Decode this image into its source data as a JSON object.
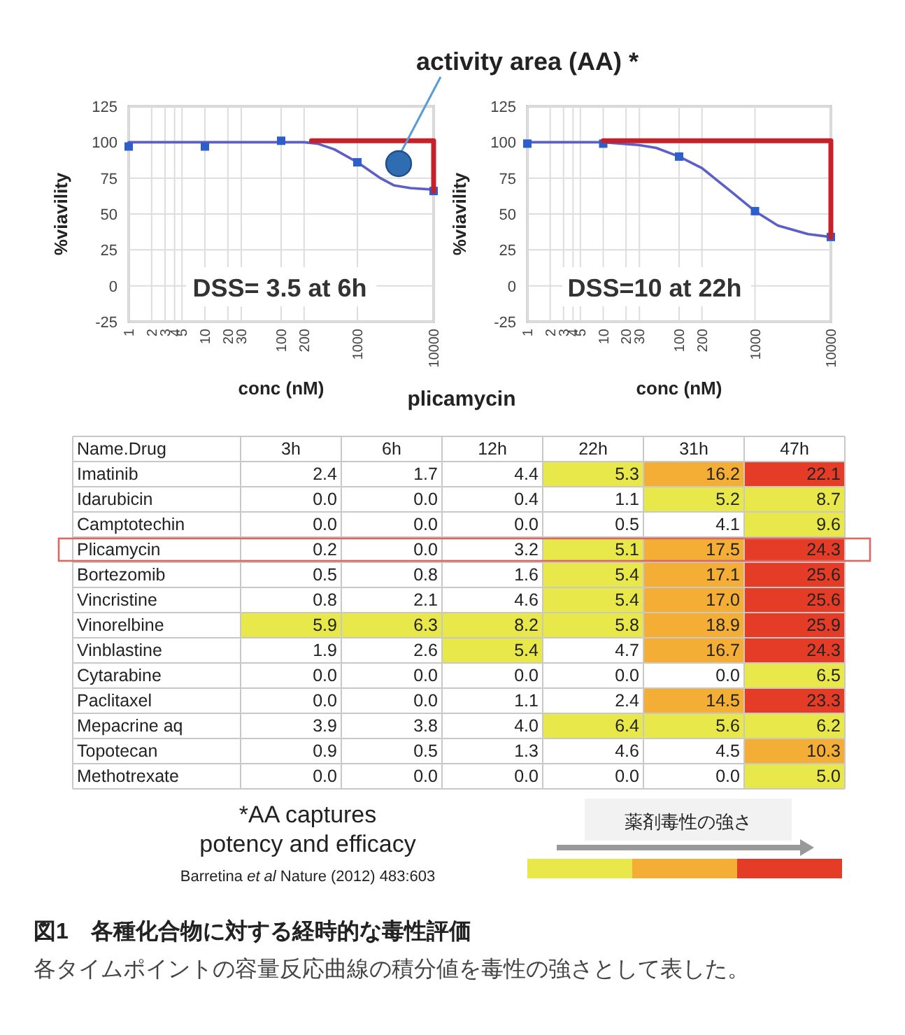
{
  "chart_data": [
    {
      "type": "line",
      "xlabel": "conc (nM)",
      "ylabel": "%viavility",
      "log": "x",
      "xlim": [
        1,
        10000
      ],
      "xticks": [
        1,
        2,
        3,
        4,
        5,
        10,
        20,
        30,
        100,
        200,
        1000,
        10000
      ],
      "ylim": [
        -25,
        125
      ],
      "yticks": [
        -25,
        0,
        25,
        50,
        75,
        100,
        125
      ],
      "grid": true,
      "annotations": [
        "activity area (AA) *",
        "DSS= 3.5 at 6h",
        "plicamycin"
      ],
      "series": [
        {
          "type": "line",
          "color": "#5b5fc7",
          "marker": "none",
          "x": [
            1,
            10,
            100,
            200,
            300,
            500,
            1000,
            2000,
            3000,
            5000,
            10000
          ],
          "values": [
            100,
            100,
            100,
            100,
            99,
            95,
            86,
            75,
            70,
            68,
            67
          ]
        },
        {
          "type": "scatter",
          "color": "#2e5ec9",
          "marker": "square",
          "x": [
            1,
            10,
            100,
            1000,
            10000
          ],
          "values": [
            97,
            97,
            101,
            86,
            66
          ]
        },
        {
          "type": "line",
          "color": "#c8202a",
          "marker": "none",
          "x": [
            250,
            10000,
            10000
          ],
          "values": [
            101,
            101,
            66
          ]
        }
      ]
    },
    {
      "type": "line",
      "xlabel": "conc (nM)",
      "ylabel": "%viavility",
      "log": "x",
      "xlim": [
        1,
        10000
      ],
      "xticks": [
        1,
        2,
        3,
        4,
        5,
        10,
        20,
        30,
        100,
        200,
        1000,
        10000
      ],
      "ylim": [
        -25,
        125
      ],
      "yticks": [
        -25,
        0,
        25,
        50,
        75,
        100,
        125
      ],
      "grid": true,
      "annotations": [
        "DSS=10 at 22h"
      ],
      "series": [
        {
          "type": "line",
          "color": "#5b5fc7",
          "marker": "none",
          "x": [
            1,
            10,
            30,
            50,
            100,
            200,
            500,
            1000,
            2000,
            5000,
            10000
          ],
          "values": [
            100,
            100,
            98,
            96,
            90,
            82,
            65,
            52,
            42,
            36,
            34
          ]
        },
        {
          "type": "scatter",
          "color": "#2e5ec9",
          "marker": "square",
          "x": [
            1,
            10,
            100,
            1000,
            10000
          ],
          "values": [
            99,
            99,
            90,
            52,
            34
          ]
        },
        {
          "type": "line",
          "color": "#c8202a",
          "marker": "none",
          "x": [
            10,
            10000,
            10000
          ],
          "values": [
            101,
            101,
            34
          ]
        }
      ]
    },
    {
      "type": "heatmap",
      "ylabel": "Name.Drug",
      "clabel": "薬剤毒性の強さ",
      "categories": [
        "3h",
        "6h",
        "12h",
        "22h",
        "31h",
        "47h"
      ],
      "y_categories": [
        "Imatinib",
        "Idarubicin",
        "Camptotechin",
        "Plicamycin",
        "Bortezomib",
        "Vincristine",
        "Vinorelbine",
        "Vinblastine",
        "Cytarabine",
        "Paclitaxel",
        "Mepacrine aq",
        "Topotecan",
        "Methotrexate"
      ],
      "cells": [
        [
          2.4,
          1.7,
          4.4,
          5.3,
          16.2,
          22.1
        ],
        [
          0.0,
          0.0,
          0.4,
          1.1,
          5.2,
          8.7
        ],
        [
          0.0,
          0.0,
          0.0,
          0.5,
          4.1,
          9.6
        ],
        [
          0.2,
          0.0,
          3.2,
          5.1,
          17.5,
          24.3
        ],
        [
          0.5,
          0.8,
          1.6,
          5.4,
          17.1,
          25.6
        ],
        [
          0.8,
          2.1,
          4.6,
          5.4,
          17.0,
          25.6
        ],
        [
          5.9,
          6.3,
          8.2,
          5.8,
          18.9,
          25.9
        ],
        [
          1.9,
          2.6,
          5.4,
          4.7,
          16.7,
          24.3
        ],
        [
          0.0,
          0.0,
          0.0,
          0.0,
          0.0,
          6.5
        ],
        [
          0.0,
          0.0,
          1.1,
          2.4,
          14.5,
          23.3
        ],
        [
          3.9,
          3.8,
          4.0,
          6.4,
          5.6,
          6.2
        ],
        [
          0.9,
          0.5,
          1.3,
          4.6,
          4.5,
          10.3
        ],
        [
          0.0,
          0.0,
          0.0,
          0.0,
          0.0,
          5.0
        ]
      ],
      "cell_labels": [
        [
          "2.4",
          "1.7",
          "4.4",
          "5.3",
          "16.2",
          "22.1"
        ],
        [
          "0.0",
          "0.0",
          "0.4",
          "1.1",
          "5.2",
          "8.7"
        ],
        [
          "0.0",
          "0.0",
          "0.0",
          "0.5",
          "4.1",
          "9.6"
        ],
        [
          "0.2",
          "0.0",
          "3.2",
          "5.1",
          "17.5",
          "24.3"
        ],
        [
          "0.5",
          "0.8",
          "1.6",
          "5.4",
          "17.1",
          "25.6"
        ],
        [
          "0.8",
          "2.1",
          "4.6",
          "5.4",
          "17.0",
          "25.6"
        ],
        [
          "5.9",
          "6.3",
          "8.2",
          "5.8",
          "18.9",
          "25.9"
        ],
        [
          "1.9",
          "2.6",
          "5.4",
          "4.7",
          "16.7",
          "24.3"
        ],
        [
          "0.0",
          "0.0",
          "0.0",
          "0.0",
          "0.0",
          "6.5"
        ],
        [
          "0.0",
          "0.0",
          "1.1",
          "2.4",
          "14.5",
          "23.3"
        ],
        [
          "3.9",
          "3.8",
          "4.0",
          "6.4",
          "5.6",
          "6.2"
        ],
        [
          "0.9",
          "0.5",
          "1.3",
          "4.6",
          "4.5",
          "10.3"
        ],
        [
          "0.0",
          "0.0",
          "0.0",
          "0.0",
          "0.0",
          "5.0"
        ]
      ],
      "annotations": [
        "*AA captures potency and efficacy",
        "Barretina *et al* Nature (2012) 483:603",
        "図1　各種化合物に対する経時的な毒性評価",
        "各タイムポイントの容量反応曲線の積分値を毒性の強さとして表した。"
      ]
    }
  ]
}
